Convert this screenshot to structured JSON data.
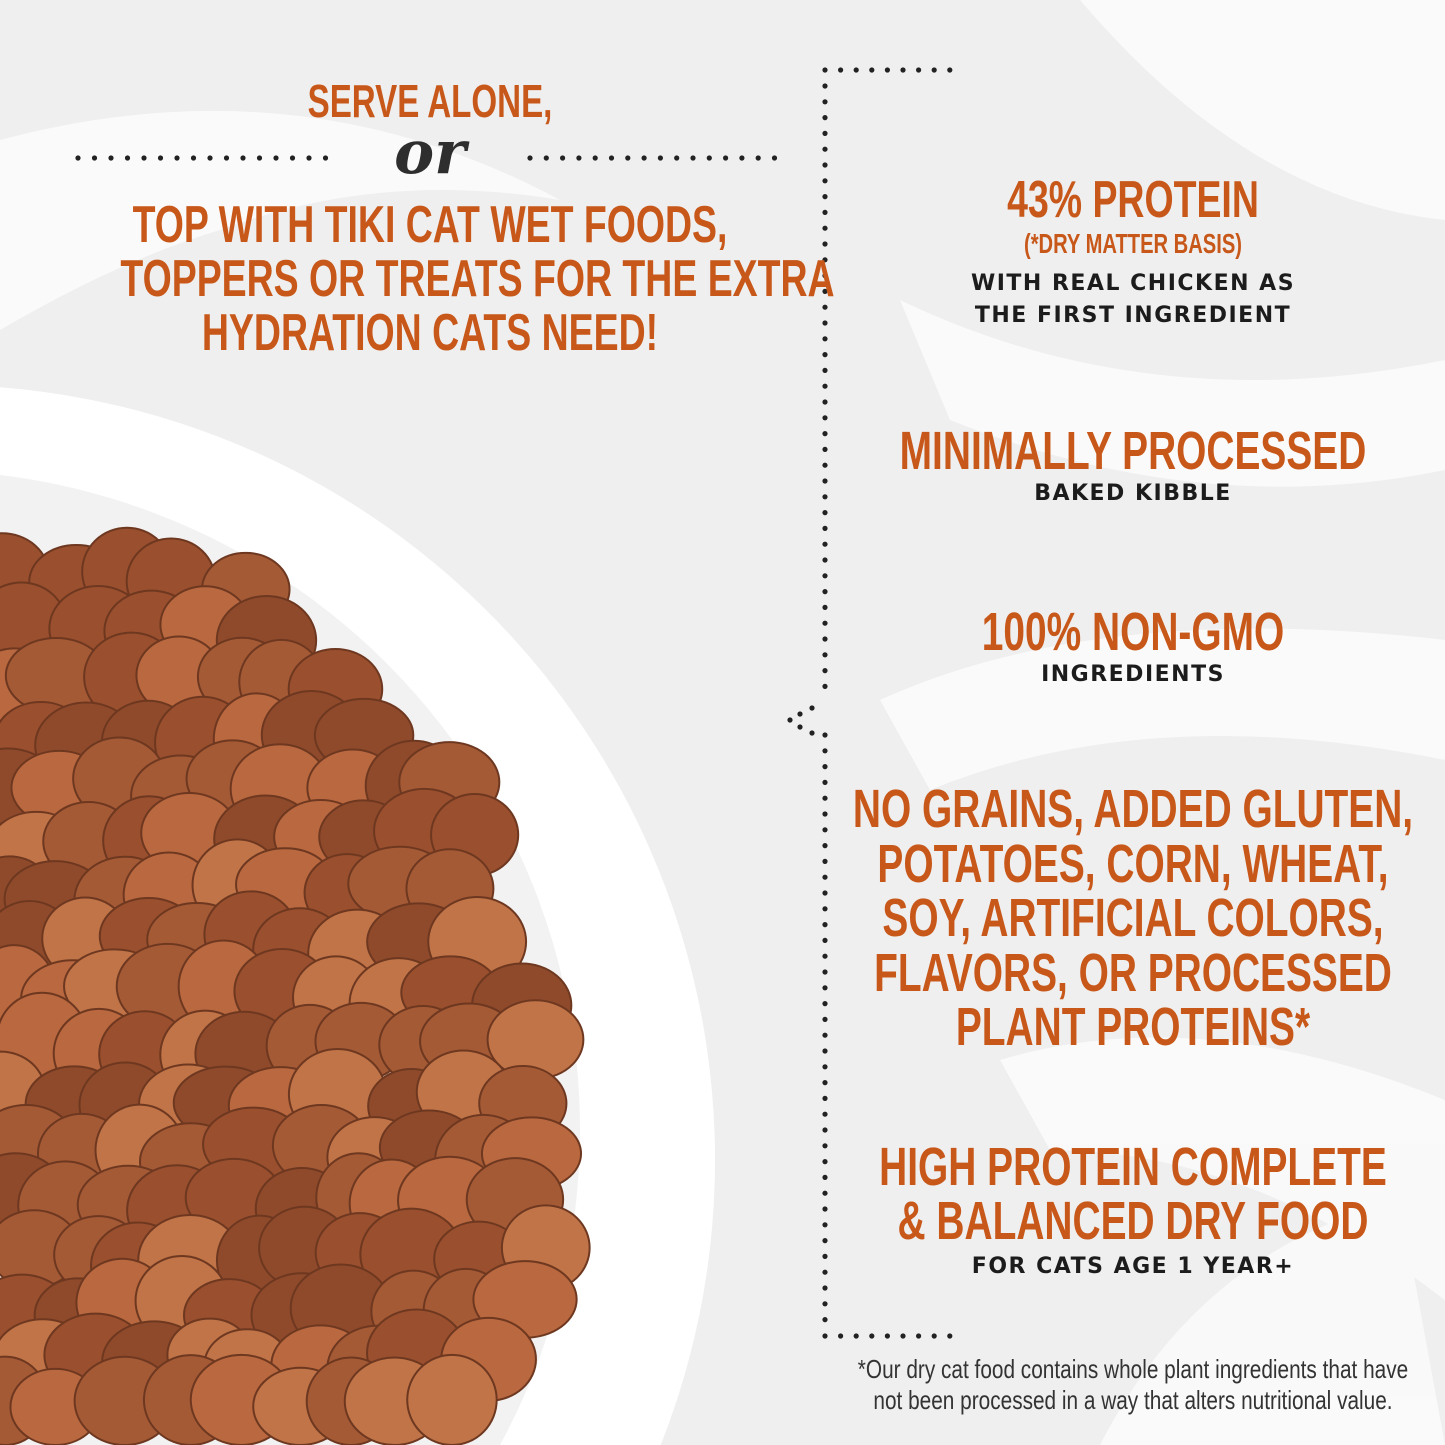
{
  "colors": {
    "accent": "#c8581a",
    "dark_text": "#1c1c1c",
    "background": "#efefef"
  },
  "left": {
    "serve_alone": "SERVE ALONE,",
    "or": "or",
    "top_with": [
      "TOP WITH TIKI CAT WET FOODS,",
      "TOPPERS OR TREATS FOR THE EXTRA",
      "HYDRATION CATS NEED!"
    ]
  },
  "features": [
    {
      "title": [
        "43% PROTEIN"
      ],
      "note": "(*DRY MATTER BASIS)",
      "subtitle": [
        "WITH REAL CHICKEN AS",
        "THE FIRST INGREDIENT"
      ]
    },
    {
      "title": [
        "MINIMALLY PROCESSED"
      ],
      "subtitle": [
        "BAKED KIBBLE"
      ]
    },
    {
      "title": [
        "100% NON-GMO"
      ],
      "subtitle": [
        "INGREDIENTS"
      ]
    },
    {
      "title": [
        "NO GRAINS, ADDED GLUTEN,",
        "POTATOES, CORN, WHEAT,",
        "SOY, ARTIFICIAL COLORS,",
        "FLAVORS, OR PROCESSED",
        "PLANT PROTEINS*"
      ]
    },
    {
      "title": [
        "HIGH PROTEIN COMPLETE",
        "& BALANCED DRY FOOD"
      ],
      "subtitle": [
        "FOR CATS AGE 1 YEAR+"
      ]
    }
  ],
  "footnote": [
    "*Our dry cat food contains whole plant ingredients that have",
    "not been processed in a way that alters nutritional value."
  ]
}
